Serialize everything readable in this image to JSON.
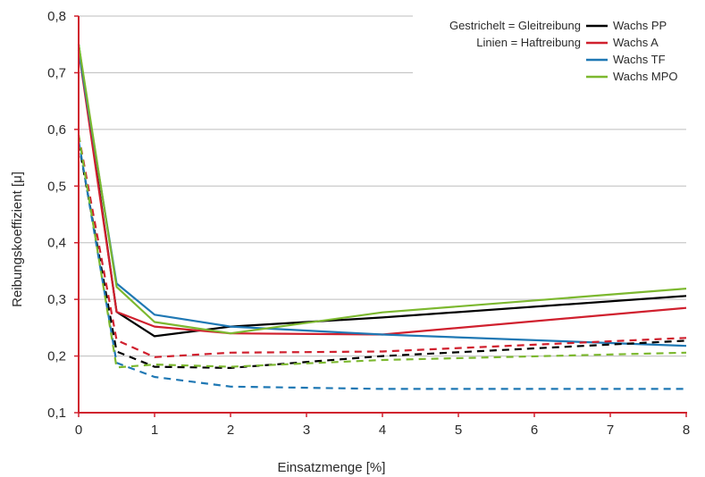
{
  "chart_data": {
    "type": "line",
    "xlabel": "Einsatzmenge [%]",
    "ylabel": "Reibungskoeffizient [μ]",
    "xlim": [
      0,
      8
    ],
    "ylim": [
      0.1,
      0.8
    ],
    "xticks": [
      0,
      1,
      2,
      3,
      4,
      5,
      6,
      7,
      8
    ],
    "yticks": [
      0.1,
      0.2,
      0.3,
      0.4,
      0.5,
      0.6,
      0.7,
      0.8
    ],
    "x_tick_labels": [
      "0",
      "1",
      "2",
      "3",
      "4",
      "5",
      "6",
      "7",
      "8"
    ],
    "y_tick_labels": [
      "0,1",
      "0,2",
      "0,3",
      "0,4",
      "0,5",
      "0,6",
      "0,7",
      "0,8"
    ],
    "grid": "horizontal",
    "legend_position": "top-right",
    "legend_notes": [
      "Gestrichelt = Gleitreibung",
      "Linien = Haftreibung"
    ],
    "axis_color": "#d0202e",
    "grid_color": "#bdbdbd",
    "series": [
      {
        "name": "Wachs PP",
        "color": "#000000",
        "style": "solid",
        "x": [
          0,
          0.5,
          1,
          2,
          4,
          8
        ],
        "y": [
          0.75,
          0.278,
          0.235,
          0.252,
          0.268,
          0.306
        ]
      },
      {
        "name": "Wachs A",
        "color": "#d0202e",
        "style": "solid",
        "x": [
          0,
          0.5,
          1,
          2,
          4,
          8
        ],
        "y": [
          0.74,
          0.278,
          0.252,
          0.24,
          0.238,
          0.285
        ]
      },
      {
        "name": "Wachs TF",
        "color": "#1f78b4",
        "style": "solid",
        "x": [
          0,
          0.5,
          1,
          2,
          4,
          8
        ],
        "y": [
          0.74,
          0.328,
          0.273,
          0.252,
          0.238,
          0.218
        ]
      },
      {
        "name": "Wachs MPO",
        "color": "#7cb82f",
        "style": "solid",
        "x": [
          0,
          0.5,
          1,
          2,
          4,
          8
        ],
        "y": [
          0.75,
          0.322,
          0.26,
          0.24,
          0.277,
          0.319
        ]
      },
      {
        "name": "Wachs PP",
        "color": "#000000",
        "style": "dashed",
        "x": [
          0,
          0.5,
          1,
          2,
          4,
          8
        ],
        "y": [
          0.575,
          0.208,
          0.181,
          0.179,
          0.2,
          0.227
        ]
      },
      {
        "name": "Wachs A",
        "color": "#d0202e",
        "style": "dashed",
        "x": [
          0,
          0.5,
          1,
          2,
          4,
          8
        ],
        "y": [
          0.59,
          0.228,
          0.198,
          0.206,
          0.208,
          0.232
        ]
      },
      {
        "name": "Wachs TF",
        "color": "#1f78b4",
        "style": "dashed",
        "x": [
          0,
          0.5,
          1,
          2,
          4,
          8
        ],
        "y": [
          0.58,
          0.188,
          0.163,
          0.146,
          0.142,
          0.142
        ]
      },
      {
        "name": "Wachs MPO",
        "color": "#7cb82f",
        "style": "dashed",
        "x": [
          0,
          0.5,
          1,
          2,
          4,
          8
        ],
        "y": [
          0.59,
          0.18,
          0.185,
          0.181,
          0.193,
          0.206
        ]
      }
    ]
  }
}
